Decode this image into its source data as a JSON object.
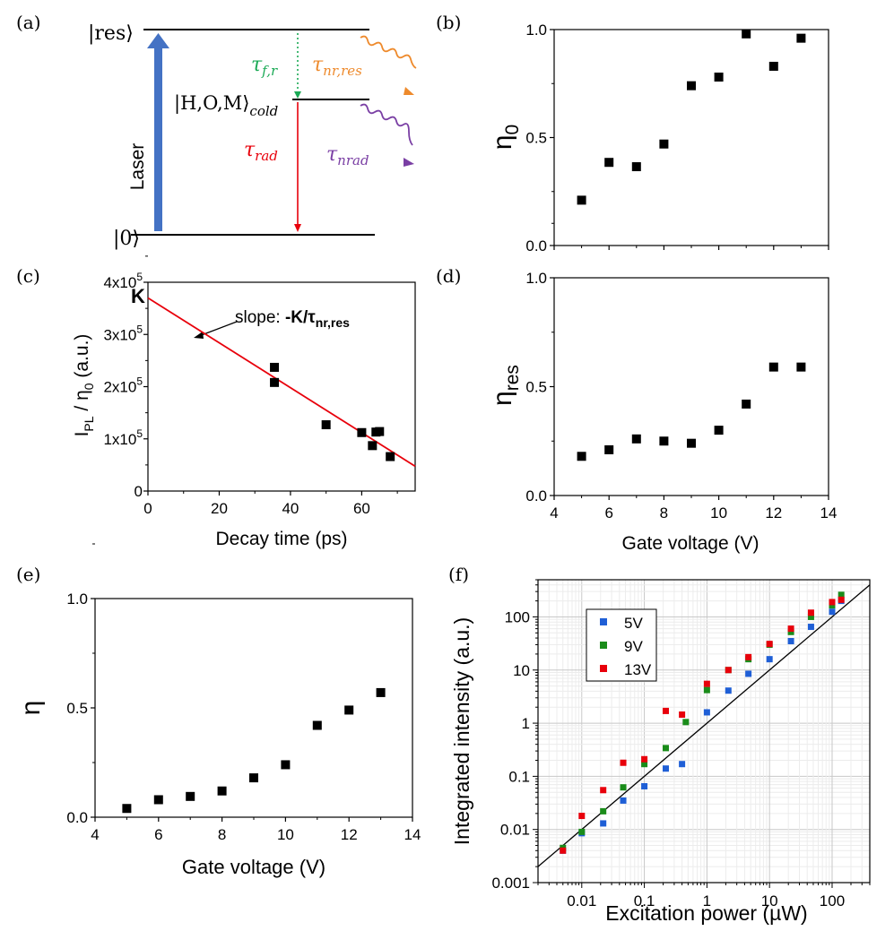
{
  "colors": {
    "black": "#000000",
    "red": "#e8000b",
    "blue": "#1f5fd6",
    "green": "#1a8c1a",
    "orange": "#ee8a2c",
    "purple": "#7a3fa4",
    "laser": "#4472c4",
    "teal": "#1aa955"
  },
  "panel_labels": {
    "a": "(a)",
    "b": "(b)",
    "c": "(c)",
    "d": "(d)",
    "e": "(e)",
    "f": "(f)"
  },
  "diagram": {
    "level_res": "|res⟩",
    "level_cold_main": "|H,O,M⟩",
    "level_cold_sub": "cold",
    "level_ground": "|0⟩",
    "laser": "Laser",
    "tau_fr": "τ",
    "tau_fr_sub": "f,r",
    "tau_nr_res": "τ",
    "tau_nr_res_sub": "nr,res",
    "tau_rad": "τ",
    "tau_rad_sub": "rad",
    "tau_nrad": "τ",
    "tau_nrad_sub": "nrad"
  },
  "chart_data": [
    {
      "panel": "b",
      "type": "scatter",
      "x": [
        5,
        6,
        7,
        8,
        9,
        10,
        11,
        12,
        13
      ],
      "y": [
        0.21,
        0.385,
        0.365,
        0.47,
        0.74,
        0.78,
        0.98,
        0.83,
        0.96
      ],
      "xlim": [
        4,
        14
      ],
      "ylim": [
        0,
        1
      ],
      "yticks": [
        "0.0",
        "0.5",
        "1.0"
      ],
      "ylabel": "η",
      "ylabel_sub": "0",
      "xlabel": ""
    },
    {
      "panel": "c",
      "type": "scatter",
      "x": [
        35.5,
        35.5,
        50,
        60,
        63,
        64,
        65,
        68
      ],
      "y": [
        237000,
        208000,
        127000,
        112000,
        87000,
        113000,
        114000,
        66000
      ],
      "fit_line": {
        "x": [
          0,
          75
        ],
        "y": [
          370000,
          47500
        ]
      },
      "xlim": [
        0,
        75
      ],
      "ylim": [
        0,
        400000
      ],
      "xticks": [
        "0",
        "20",
        "40",
        "60"
      ],
      "yticks": [
        {
          "mant": "0",
          "exp": ""
        },
        {
          "mant": "1x10",
          "exp": "5"
        },
        {
          "mant": "2x10",
          "exp": "5"
        },
        {
          "mant": "3x10",
          "exp": "5"
        },
        {
          "mant": "4x10",
          "exp": "5"
        }
      ],
      "xlabel": "Decay time (ps)",
      "ylabel_parts": [
        "I",
        "PL",
        " / η",
        "0",
        " (a.u.)"
      ],
      "intercept_label": "K",
      "slope_annotation": "slope: ",
      "slope_bold": "-K/τ",
      "slope_bold_sub": "nr,res"
    },
    {
      "panel": "d",
      "type": "scatter",
      "x": [
        5,
        6,
        7,
        8,
        9,
        10,
        11,
        12,
        13
      ],
      "y": [
        0.18,
        0.21,
        0.26,
        0.25,
        0.24,
        0.3,
        0.42,
        0.59,
        0.59
      ],
      "xlim": [
        4,
        14
      ],
      "ylim": [
        0,
        1
      ],
      "xticks": [
        "4",
        "6",
        "8",
        "10",
        "12",
        "14"
      ],
      "yticks": [
        "0.0",
        "0.5",
        "1.0"
      ],
      "xlabel": "Gate voltage (V)",
      "ylabel": "η",
      "ylabel_sub": "res"
    },
    {
      "panel": "e",
      "type": "scatter",
      "x": [
        5,
        6,
        7,
        8,
        9,
        10,
        11,
        12,
        13
      ],
      "y": [
        0.04,
        0.08,
        0.095,
        0.12,
        0.18,
        0.24,
        0.42,
        0.49,
        0.57
      ],
      "xlim": [
        4,
        14
      ],
      "ylim": [
        0,
        1
      ],
      "xticks": [
        "4",
        "6",
        "8",
        "10",
        "12",
        "14"
      ],
      "yticks": [
        "0.0",
        "0.5",
        "1.0"
      ],
      "xlabel": "Gate voltage (V)",
      "ylabel": "η"
    },
    {
      "panel": "f",
      "type": "scatter",
      "scale": "log-log",
      "xlim": [
        0.002,
        400
      ],
      "ylim": [
        0.001,
        500
      ],
      "xticks": [
        "0.01",
        "0.1",
        "1",
        "10",
        "100"
      ],
      "yticks": [
        "0.001",
        "0.01",
        "0.1",
        "1",
        "10",
        "100"
      ],
      "xlabel": "Excitation power (µW)",
      "ylabel": "Integrated intensity (a.u.)",
      "reference_line": {
        "x": [
          0.002,
          400
        ],
        "y": [
          0.002,
          400
        ]
      },
      "series": [
        {
          "name": "5V",
          "color": "#1f5fd6",
          "x": [
            0.005,
            0.01,
            0.022,
            0.046,
            0.1,
            0.22,
            0.4,
            1,
            2.2,
            4.6,
            10,
            22,
            46,
            100,
            140
          ],
          "y": [
            0.004,
            0.0085,
            0.013,
            0.035,
            0.065,
            0.14,
            0.17,
            1.6,
            4.1,
            8.5,
            16,
            35,
            65,
            125,
            200
          ]
        },
        {
          "name": "9V",
          "color": "#1a8c1a",
          "x": [
            0.005,
            0.01,
            0.022,
            0.046,
            0.1,
            0.22,
            0.46,
            1,
            2.2,
            4.6,
            10,
            22,
            46,
            100,
            140
          ],
          "y": [
            0.0045,
            0.009,
            0.022,
            0.062,
            0.17,
            0.34,
            1.05,
            4.2,
            10,
            16,
            30,
            52,
            100,
            165,
            260
          ]
        },
        {
          "name": "13V",
          "color": "#e8000b",
          "x": [
            0.005,
            0.01,
            0.022,
            0.046,
            0.1,
            0.22,
            0.4,
            1,
            2.2,
            4.6,
            10,
            22,
            46,
            100,
            140
          ],
          "y": [
            0.004,
            0.018,
            0.055,
            0.18,
            0.21,
            1.7,
            1.45,
            5.5,
            10,
            17.5,
            31,
            60,
            120,
            190,
            210
          ]
        }
      ]
    }
  ]
}
